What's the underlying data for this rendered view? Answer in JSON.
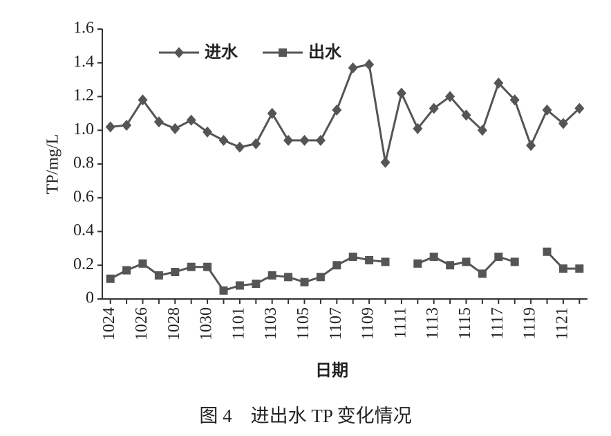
{
  "chart_data": {
    "type": "line",
    "caption": "图 4　进出水 TP 变化情况",
    "xlabel": "日期",
    "ylabel": "TP/mg/L",
    "categories": [
      "1024",
      null,
      "1026",
      null,
      "1028",
      null,
      "1030",
      null,
      "1101",
      null,
      "1103",
      null,
      "1105",
      null,
      "1107",
      null,
      "1109",
      null,
      "1111",
      null,
      "1113",
      null,
      "1115",
      null,
      "1117",
      null,
      "1119",
      null,
      "1121",
      null
    ],
    "series": [
      {
        "name": "进水",
        "color": "#555555",
        "marker": "diamond",
        "values": [
          1.02,
          1.03,
          1.18,
          1.05,
          1.01,
          1.06,
          0.99,
          0.94,
          0.9,
          0.92,
          1.1,
          0.94,
          0.94,
          0.94,
          1.12,
          1.37,
          1.39,
          0.81,
          1.22,
          1.01,
          1.13,
          1.2,
          1.09,
          1.0,
          1.28,
          1.18,
          0.91,
          1.12,
          1.04,
          1.13
        ]
      },
      {
        "name": "出水",
        "color": "#555555",
        "marker": "square",
        "values": [
          0.12,
          0.17,
          0.21,
          0.14,
          0.16,
          0.19,
          0.19,
          0.05,
          0.08,
          0.09,
          0.14,
          0.13,
          0.1,
          0.13,
          0.2,
          0.25,
          0.23,
          0.22,
          null,
          0.21,
          0.25,
          0.2,
          0.22,
          0.15,
          0.25,
          0.22,
          null,
          0.28,
          0.18,
          0.18
        ]
      }
    ],
    "ylim": [
      0,
      1.6
    ],
    "yticks": [
      0,
      0.2,
      0.4,
      0.6,
      0.8,
      {
        "value": 1,
        "label": "1.0"
      },
      1.2,
      1.4,
      1.6
    ],
    "legend": "upper left",
    "grid": false
  }
}
